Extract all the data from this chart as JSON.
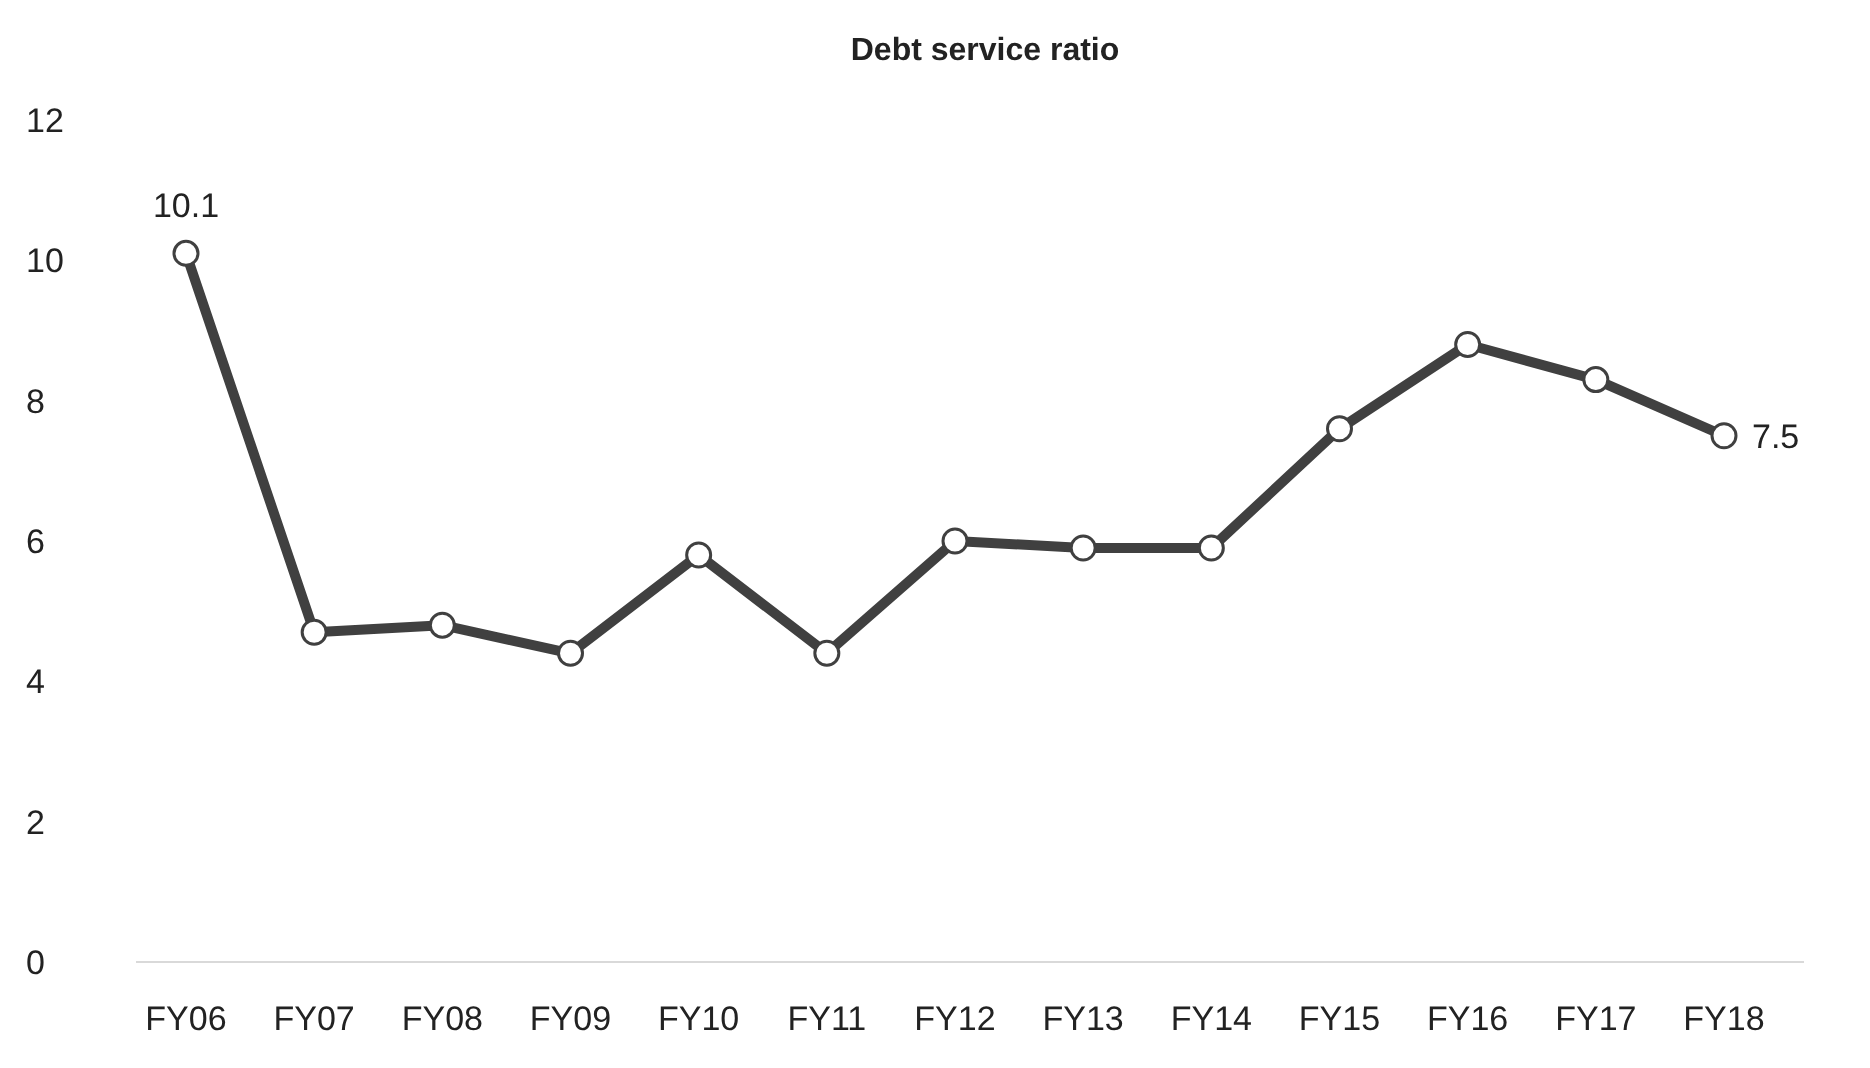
{
  "chart_data": {
    "type": "line",
    "title": "Debt service ratio",
    "categories": [
      "FY06",
      "FY07",
      "FY08",
      "FY09",
      "FY10",
      "FY11",
      "FY12",
      "FY13",
      "FY14",
      "FY15",
      "FY16",
      "FY17",
      "FY18"
    ],
    "series": [
      {
        "color": "#404040",
        "values": [
          10.1,
          4.7,
          4.8,
          4.4,
          5.8,
          4.4,
          6.0,
          5.9,
          5.9,
          7.6,
          8.8,
          8.3,
          7.5
        ],
        "value_labels": [
          "10.1",
          null,
          null,
          null,
          null,
          null,
          null,
          null,
          null,
          null,
          null,
          null,
          "7.5"
        ]
      }
    ],
    "ylim": [
      0,
      12
    ],
    "yticks": [
      0,
      2,
      4,
      6,
      8,
      10,
      12
    ],
    "grid": false,
    "marker": "circle",
    "line_style": "solid"
  }
}
